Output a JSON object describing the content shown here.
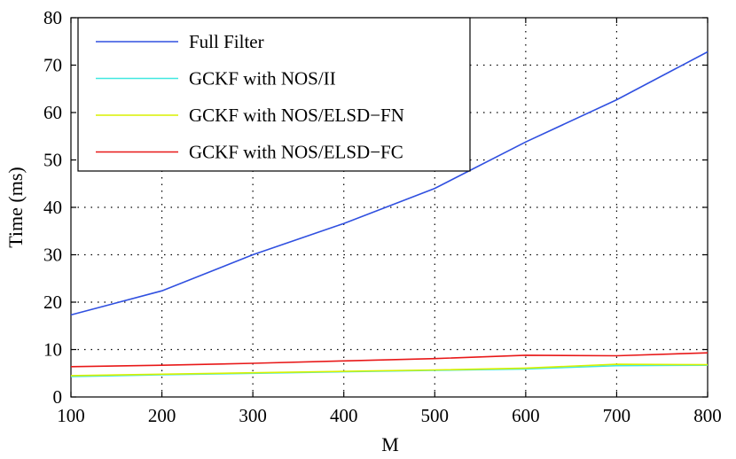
{
  "chart_data": {
    "type": "line",
    "title": "",
    "xlabel": "M",
    "ylabel": "Time (ms)",
    "xlim": [
      100,
      800
    ],
    "ylim": [
      0,
      80
    ],
    "grid": true,
    "legend_position": "top-left",
    "x": [
      100,
      200,
      300,
      400,
      500,
      600,
      700,
      800
    ],
    "x_ticks": [
      100,
      200,
      300,
      400,
      500,
      600,
      700,
      800
    ],
    "y_ticks": [
      0,
      10,
      20,
      30,
      40,
      50,
      60,
      70,
      80
    ],
    "series": [
      {
        "name": "Full Filter",
        "color": "#3050e0",
        "values": [
          17.3,
          22.4,
          30.0,
          36.6,
          44.0,
          53.8,
          62.7,
          72.8
        ]
      },
      {
        "name": "GCKF with NOS/II",
        "color": "#40e8e0",
        "values": [
          4.3,
          4.7,
          5.0,
          5.3,
          5.6,
          5.9,
          6.6,
          6.7
        ]
      },
      {
        "name": "GCKF with NOS/ELSD−FN",
        "color": "#d8f000",
        "values": [
          4.5,
          4.8,
          5.1,
          5.4,
          5.7,
          6.1,
          6.9,
          6.8
        ]
      },
      {
        "name": "GCKF with NOS/ELSD−FC",
        "color": "#e81818",
        "values": [
          6.4,
          6.7,
          7.1,
          7.6,
          8.1,
          8.8,
          8.7,
          9.3
        ]
      }
    ]
  }
}
